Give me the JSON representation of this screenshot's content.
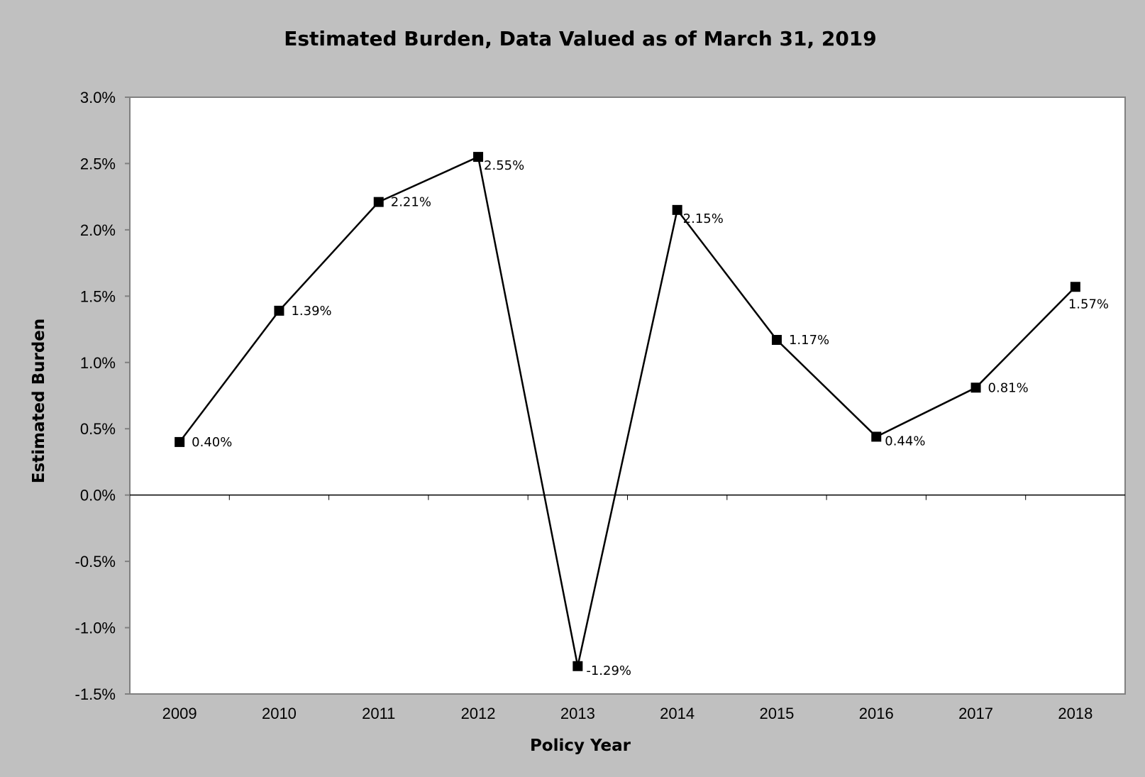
{
  "chart_data": {
    "type": "line",
    "title": "Estimated Burden, Data Valued as of March 31, 2019",
    "xlabel": "Policy Year",
    "ylabel": "Estimated Burden",
    "categories": [
      "2009",
      "2010",
      "2011",
      "2012",
      "2013",
      "2014",
      "2015",
      "2016",
      "2017",
      "2018"
    ],
    "series": [
      {
        "values": [
          0.4,
          1.39,
          2.21,
          2.55,
          -1.29,
          2.15,
          1.17,
          0.44,
          0.81,
          1.57
        ],
        "labels": [
          "0.40%",
          "1.39%",
          "2.21%",
          "2.55%",
          "-1.29%",
          "2.15%",
          "1.17%",
          "0.44%",
          "0.81%",
          "1.57%"
        ],
        "color": "#000000",
        "marker": "square"
      }
    ],
    "ylim": [
      -1.5,
      3.0
    ],
    "yticks": [
      3.0,
      2.5,
      2.0,
      1.5,
      1.0,
      0.5,
      0.0,
      -0.5,
      -1.0,
      -1.5
    ],
    "ytick_labels": [
      "3.0%",
      "2.5%",
      "2.0%",
      "1.5%",
      "1.0%",
      "0.5%",
      "0.0%",
      "-0.5%",
      "-1.0%",
      "-1.5%"
    ],
    "grid": false,
    "legend": "none",
    "plot_background": "#ffffff",
    "chart_background": "#c0c0c0"
  }
}
